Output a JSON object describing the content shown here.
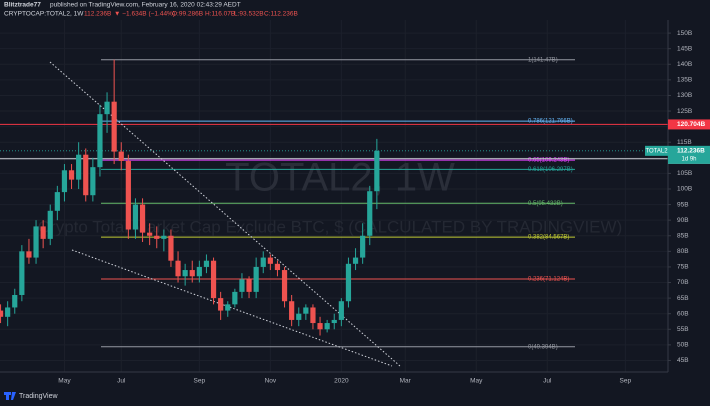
{
  "header": {
    "author": "Blitztrade77",
    "published": "published on TradingView.com, February 16, 2020 02:43:29 AEDT",
    "symbol": "CRYPTOCAP:TOTAL2, 1W",
    "last": "112.236B",
    "change": "▼ −1.634B (−1.44%)",
    "ohlc": [
      "O:99.286B",
      "H:116.07B",
      "L:93.532B",
      "C:112.236B"
    ]
  },
  "footer": {
    "brand": "TradingView"
  },
  "chart_data": {
    "type": "candlestick",
    "watermark": "TOTAL2, 1W",
    "watermark_subtitle": "Crypto Total Market Cap Exclude BTC, $ (CALCULATED BY TRADINGVIEW)",
    "up_color": "#26a69a",
    "down_color": "#ef5350",
    "categories": [
      null,
      null,
      null,
      null,
      null,
      null,
      null,
      null,
      null,
      "May",
      null,
      null,
      null,
      null,
      null,
      null,
      null,
      "Jul",
      null,
      null,
      null,
      null,
      null,
      null,
      null,
      null,
      null,
      null,
      "Sep",
      null,
      null,
      null,
      null,
      null,
      null,
      null,
      null,
      null,
      "Nov",
      null,
      null,
      null,
      null,
      null,
      null,
      null,
      null,
      null,
      "2020",
      null,
      null,
      null,
      null,
      null,
      null,
      null,
      null,
      "Mar",
      null,
      null,
      null,
      null,
      null,
      null,
      null,
      null,
      null,
      "May",
      null,
      null,
      null,
      null,
      null,
      null,
      null,
      null,
      null,
      "Jul",
      null,
      null,
      null,
      null,
      null,
      null,
      null,
      null,
      null,
      null,
      "Sep",
      null,
      null,
      null,
      null,
      null
    ],
    "open": [
      61,
      59,
      62,
      66,
      80,
      78,
      88,
      84,
      93,
      99,
      106,
      103,
      111,
      98,
      107,
      124,
      128,
      112,
      109,
      87,
      95,
      86,
      85,
      84,
      85,
      77,
      72,
      74,
      72,
      75,
      77,
      65,
      61,
      63,
      67,
      71,
      67,
      75,
      78,
      76,
      74,
      64,
      58,
      60,
      62,
      57,
      55,
      57,
      58,
      64,
      76,
      78,
      85,
      99.286,
      null,
      null,
      null,
      null,
      null,
      null,
      null,
      null,
      null,
      null,
      null,
      null,
      null,
      null,
      null,
      null,
      null,
      null,
      null,
      null,
      null,
      null,
      null,
      null,
      null,
      null,
      null,
      null,
      null,
      null,
      null,
      null,
      null,
      null,
      null,
      null,
      null,
      null,
      null,
      null
    ],
    "high": [
      63,
      64,
      68,
      82,
      84,
      90,
      90,
      95,
      101,
      108,
      108,
      115,
      113,
      110,
      127,
      131,
      141.47,
      115,
      111,
      97,
      97,
      89,
      88,
      87,
      87,
      80,
      76,
      77,
      77,
      79,
      78,
      67,
      64,
      68,
      73,
      72,
      78,
      80,
      79,
      77,
      75,
      66,
      62,
      63,
      63,
      59,
      58,
      60,
      65,
      78,
      81,
      89,
      101,
      116.07,
      null,
      null,
      null,
      null,
      null,
      null,
      null,
      null,
      null,
      null,
      null,
      null,
      null,
      null,
      null,
      null,
      null,
      null,
      null,
      null,
      null,
      null,
      null,
      null,
      null,
      null,
      null,
      null,
      null,
      null,
      null,
      null,
      null,
      null,
      null,
      null,
      null,
      null,
      null,
      null
    ],
    "low": [
      57,
      56,
      60,
      64,
      76,
      76,
      81,
      82,
      90,
      96,
      100,
      100,
      96,
      96,
      104,
      118,
      108,
      106,
      84,
      84,
      83,
      82,
      81,
      80,
      75,
      70,
      69,
      70,
      70,
      73,
      63,
      58,
      59,
      62,
      65,
      65,
      65,
      73,
      74,
      72,
      62,
      56,
      56,
      58,
      55,
      53,
      54,
      55,
      56,
      62,
      74,
      76,
      82,
      93.532,
      null,
      null,
      null,
      null,
      null,
      null,
      null,
      null,
      null,
      null,
      null,
      null,
      null,
      null,
      null,
      null,
      null,
      null,
      null,
      null,
      null,
      null,
      null,
      null,
      null,
      null,
      null,
      null,
      null,
      null,
      null,
      null,
      null,
      null,
      null,
      null,
      null,
      null,
      null,
      null
    ],
    "close": [
      59,
      62,
      66,
      80,
      78,
      88,
      84,
      93,
      99,
      106,
      103,
      111,
      98,
      107,
      124,
      128,
      112,
      109,
      87,
      95,
      86,
      85,
      84,
      85,
      77,
      72,
      74,
      72,
      75,
      77,
      65,
      61,
      63,
      67,
      71,
      67,
      75,
      78,
      76,
      74,
      64,
      58,
      60,
      62,
      57,
      55,
      57,
      58,
      64,
      76,
      78,
      85,
      99.286,
      112.236,
      null,
      null,
      null,
      null,
      null,
      null,
      null,
      null,
      null,
      null,
      null,
      null,
      null,
      null,
      null,
      null,
      null,
      null,
      null,
      null,
      null,
      null,
      null,
      null,
      null,
      null,
      null,
      null,
      null,
      null,
      null,
      null,
      null,
      null,
      null,
      null,
      null,
      null,
      null,
      null
    ],
    "ylim": [
      41.3,
      154.2
    ],
    "yticks": [
      {
        "value": 45,
        "label": "45B"
      },
      {
        "value": 50,
        "label": "50B"
      },
      {
        "value": 55,
        "label": "55B"
      },
      {
        "value": 60,
        "label": "60B"
      },
      {
        "value": 65,
        "label": "65B"
      },
      {
        "value": 70,
        "label": "70B"
      },
      {
        "value": 75,
        "label": "75B"
      },
      {
        "value": 80,
        "label": "80B"
      },
      {
        "value": 85,
        "label": "85B"
      },
      {
        "value": 90,
        "label": "90B"
      },
      {
        "value": 95,
        "label": "95B"
      },
      {
        "value": 100,
        "label": "100B"
      },
      {
        "value": 105,
        "label": "105B"
      },
      {
        "value": 110,
        "label": "110B"
      },
      {
        "value": 115,
        "label": "115B"
      },
      {
        "value": 120,
        "label": "120B"
      },
      {
        "value": 125,
        "label": "125B"
      },
      {
        "value": 130,
        "label": "130B"
      },
      {
        "value": 135,
        "label": "135B"
      },
      {
        "value": 140,
        "label": "140B"
      },
      {
        "value": 145,
        "label": "145B"
      },
      {
        "value": 150,
        "label": "150B"
      }
    ],
    "grid": true,
    "fib_levels": [
      {
        "value": 141.47,
        "label": "1(141.47B)",
        "color": "#9598a1"
      },
      {
        "value": 121.766,
        "label": "0.786(121.766B)",
        "color": "#64b5f6"
      },
      {
        "value": 109.243,
        "label": "0.65(109.243B)",
        "color": "#e040fb"
      },
      {
        "value": 106.297,
        "label": "0.618(106.297B)",
        "color": "#26a69a"
      },
      {
        "value": 95.432,
        "label": "0.5(95.432B)",
        "color": "#66bb6a"
      },
      {
        "value": 84.567,
        "label": "0.382(84.567B)",
        "color": "#c0ca33"
      },
      {
        "value": 71.124,
        "label": "0.236(71.124B)",
        "color": "#ef5350"
      },
      {
        "value": 49.394,
        "label": "0(49.394B)",
        "color": "#9598a1"
      }
    ],
    "price_lines": [
      {
        "value": 120.704,
        "label": "120.704B",
        "color": "#f23645",
        "text_color": "#ffffff"
      },
      {
        "value": 109.679,
        "label": "109.679B",
        "color": "#d1d4dc",
        "text_color": "#131722"
      }
    ],
    "last_price": {
      "value": 112.236,
      "name": "TOTAL2",
      "label": "112.236B",
      "countdown": "1d 9h",
      "color": "#26a69a"
    }
  }
}
